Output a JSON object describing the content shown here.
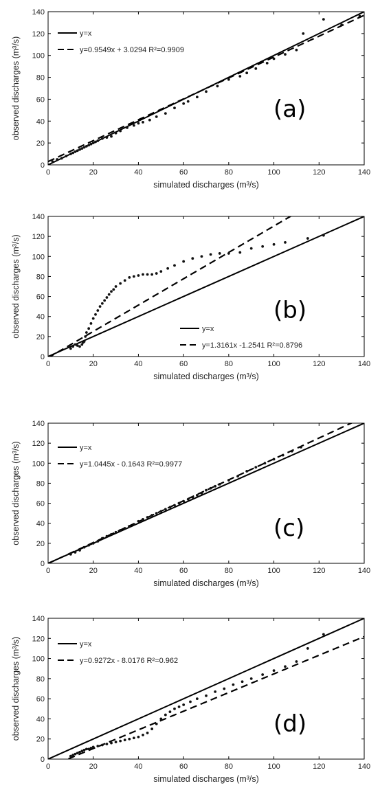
{
  "colors": {
    "line": "#000000",
    "points": "#111111",
    "axis": "#000000"
  },
  "chart_data": [
    {
      "panel_label": "(a)",
      "type": "scatter",
      "xlabel": "simulated discharges (m³/s)",
      "ylabel": "observed discharges (m³/s)",
      "xlim": [
        0,
        140
      ],
      "ylim": [
        0,
        140
      ],
      "xticks": [
        0,
        20,
        40,
        60,
        80,
        100,
        120,
        140
      ],
      "yticks": [
        0,
        20,
        40,
        60,
        80,
        100,
        120,
        140
      ],
      "legend_position": "top-left",
      "series": [
        {
          "name": "y=x",
          "style": "solid",
          "slope": 1,
          "intercept": 0
        },
        {
          "name": "y=0.9549x + 3.0294  R²=0.9909",
          "style": "dashed",
          "slope": 0.9549,
          "intercept": 3.0294
        }
      ],
      "points": [
        [
          2,
          3
        ],
        [
          4,
          5
        ],
        [
          6,
          6
        ],
        [
          8,
          8
        ],
        [
          10,
          10
        ],
        [
          11,
          11
        ],
        [
          12,
          12
        ],
        [
          13,
          13
        ],
        [
          14,
          14
        ],
        [
          15,
          15
        ],
        [
          16,
          16
        ],
        [
          17,
          17
        ],
        [
          18,
          18
        ],
        [
          19,
          19
        ],
        [
          20,
          20
        ],
        [
          21,
          21
        ],
        [
          22,
          22
        ],
        [
          24,
          24
        ],
        [
          26,
          25
        ],
        [
          28,
          26
        ],
        [
          30,
          29
        ],
        [
          32,
          31
        ],
        [
          35,
          34
        ],
        [
          38,
          36
        ],
        [
          40,
          38
        ],
        [
          42,
          39
        ],
        [
          45,
          41
        ],
        [
          48,
          44
        ],
        [
          52,
          47
        ],
        [
          56,
          52
        ],
        [
          60,
          56
        ],
        [
          62,
          58
        ],
        [
          66,
          62
        ],
        [
          70,
          67
        ],
        [
          75,
          72
        ],
        [
          80,
          78
        ],
        [
          85,
          81
        ],
        [
          88,
          84
        ],
        [
          92,
          88
        ],
        [
          97,
          93
        ],
        [
          100,
          97
        ],
        [
          105,
          101
        ],
        [
          110,
          105
        ],
        [
          113,
          120
        ],
        [
          122,
          133
        ],
        [
          130,
          128
        ],
        [
          138,
          136
        ]
      ]
    },
    {
      "panel_label": "(b)",
      "type": "scatter",
      "xlabel": "simulated discharges (m³/s)",
      "ylabel": "observed discharges (m³/s)",
      "xlim": [
        0,
        140
      ],
      "ylim": [
        0,
        140
      ],
      "xticks": [
        0,
        20,
        40,
        60,
        80,
        100,
        120,
        140
      ],
      "yticks": [
        0,
        20,
        40,
        60,
        80,
        100,
        120,
        140
      ],
      "legend_position": "bottom-right",
      "series": [
        {
          "name": "y=x",
          "style": "solid",
          "slope": 1,
          "intercept": 0
        },
        {
          "name": "y=1.3161x -1.2541 R²=0.8796",
          "style": "dashed",
          "slope": 1.3161,
          "intercept": -1.2541
        }
      ],
      "points": [
        [
          10,
          8
        ],
        [
          11,
          10
        ],
        [
          12,
          12
        ],
        [
          13,
          11
        ],
        [
          14,
          10
        ],
        [
          15,
          12
        ],
        [
          15.5,
          14
        ],
        [
          16,
          15
        ],
        [
          16.5,
          20
        ],
        [
          17,
          24
        ],
        [
          18,
          28
        ],
        [
          19,
          33
        ],
        [
          20,
          38
        ],
        [
          21,
          42
        ],
        [
          22,
          46
        ],
        [
          23,
          50
        ],
        [
          24,
          53
        ],
        [
          25,
          56
        ],
        [
          26,
          59
        ],
        [
          27,
          62
        ],
        [
          28,
          65
        ],
        [
          29,
          67
        ],
        [
          30,
          70
        ],
        [
          32,
          73
        ],
        [
          34,
          76
        ],
        [
          36,
          79
        ],
        [
          38,
          80
        ],
        [
          40,
          81
        ],
        [
          42,
          82
        ],
        [
          44,
          82
        ],
        [
          46,
          82
        ],
        [
          48,
          83
        ],
        [
          50,
          85
        ],
        [
          53,
          88
        ],
        [
          56,
          91
        ],
        [
          60,
          95
        ],
        [
          64,
          98
        ],
        [
          68,
          100
        ],
        [
          72,
          102
        ],
        [
          76,
          103
        ],
        [
          80,
          103
        ],
        [
          85,
          104
        ],
        [
          90,
          108
        ],
        [
          95,
          110
        ],
        [
          100,
          112
        ],
        [
          105,
          114
        ],
        [
          115,
          118
        ],
        [
          122,
          121
        ]
      ]
    },
    {
      "panel_label": "(c)",
      "type": "scatter",
      "xlabel": "simulated discharges (m³/s)",
      "ylabel": "observed discharges (m³/s)",
      "xlim": [
        0,
        140
      ],
      "ylim": [
        0,
        140
      ],
      "xticks": [
        0,
        20,
        40,
        60,
        80,
        100,
        120,
        140
      ],
      "yticks": [
        0,
        20,
        40,
        60,
        80,
        100,
        120,
        140
      ],
      "legend_position": "top-left",
      "series": [
        {
          "name": "y=x",
          "style": "solid",
          "slope": 1,
          "intercept": 0
        },
        {
          "name": "y=1.0445x - 0.1643  R²=0.9977",
          "style": "dashed",
          "slope": 1.0445,
          "intercept": -0.1643
        }
      ],
      "points": [
        [
          10,
          9
        ],
        [
          12,
          11
        ],
        [
          14,
          13
        ],
        [
          16,
          16
        ],
        [
          18,
          18
        ],
        [
          20,
          20
        ],
        [
          22,
          22
        ],
        [
          24,
          25
        ],
        [
          26,
          27
        ],
        [
          28,
          29
        ],
        [
          30,
          31
        ],
        [
          32,
          33
        ],
        [
          34,
          35
        ],
        [
          36,
          37
        ],
        [
          38,
          39
        ],
        [
          40,
          42
        ],
        [
          42,
          44
        ],
        [
          44,
          46
        ],
        [
          46,
          48
        ],
        [
          48,
          50
        ],
        [
          50,
          52
        ],
        [
          52,
          54
        ],
        [
          54,
          56
        ],
        [
          56,
          58
        ],
        [
          58,
          60
        ],
        [
          60,
          62
        ],
        [
          62,
          64
        ],
        [
          64,
          66
        ],
        [
          66,
          68
        ],
        [
          68,
          70
        ],
        [
          70,
          73
        ],
        [
          72,
          75
        ],
        [
          74,
          77
        ],
        [
          76,
          79
        ],
        [
          80,
          83
        ],
        [
          84,
          87
        ],
        [
          88,
          92
        ],
        [
          92,
          96
        ],
        [
          96,
          100
        ],
        [
          100,
          104
        ],
        [
          104,
          108
        ],
        [
          108,
          112
        ],
        [
          112,
          116
        ]
      ]
    },
    {
      "panel_label": "(d)",
      "type": "scatter",
      "xlabel": "simulated discharges (m³/s)",
      "ylabel": "observed discharges (m³/s)",
      "xlim": [
        0,
        140
      ],
      "ylim": [
        0,
        140
      ],
      "xticks": [
        0,
        20,
        40,
        60,
        80,
        100,
        120,
        140
      ],
      "yticks": [
        0,
        20,
        40,
        60,
        80,
        100,
        120,
        140
      ],
      "legend_position": "top-left",
      "series": [
        {
          "name": "y=x",
          "style": "solid",
          "slope": 1,
          "intercept": 0
        },
        {
          "name": "y=0.9272x - 8.0176  R²=0.962",
          "style": "dashed",
          "slope": 0.9272,
          "intercept": -8.0176
        }
      ],
      "points": [
        [
          10,
          3
        ],
        [
          11,
          4
        ],
        [
          12,
          5
        ],
        [
          13,
          6
        ],
        [
          14,
          7
        ],
        [
          15,
          8
        ],
        [
          16,
          9
        ],
        [
          17,
          10
        ],
        [
          18,
          10
        ],
        [
          19,
          11
        ],
        [
          20,
          12
        ],
        [
          22,
          13
        ],
        [
          24,
          14
        ],
        [
          26,
          15
        ],
        [
          28,
          16
        ],
        [
          30,
          17
        ],
        [
          32,
          18
        ],
        [
          34,
          19
        ],
        [
          36,
          20
        ],
        [
          38,
          21
        ],
        [
          40,
          22
        ],
        [
          42,
          24
        ],
        [
          44,
          26
        ],
        [
          46,
          30
        ],
        [
          48,
          35
        ],
        [
          50,
          40
        ],
        [
          52,
          44
        ],
        [
          54,
          47
        ],
        [
          56,
          50
        ],
        [
          58,
          52
        ],
        [
          60,
          54
        ],
        [
          63,
          57
        ],
        [
          66,
          60
        ],
        [
          70,
          63
        ],
        [
          74,
          67
        ],
        [
          78,
          70
        ],
        [
          82,
          74
        ],
        [
          86,
          77
        ],
        [
          90,
          80
        ],
        [
          95,
          84
        ],
        [
          100,
          88
        ],
        [
          105,
          92
        ],
        [
          110,
          97
        ],
        [
          115,
          110
        ],
        [
          122,
          124
        ]
      ]
    }
  ]
}
